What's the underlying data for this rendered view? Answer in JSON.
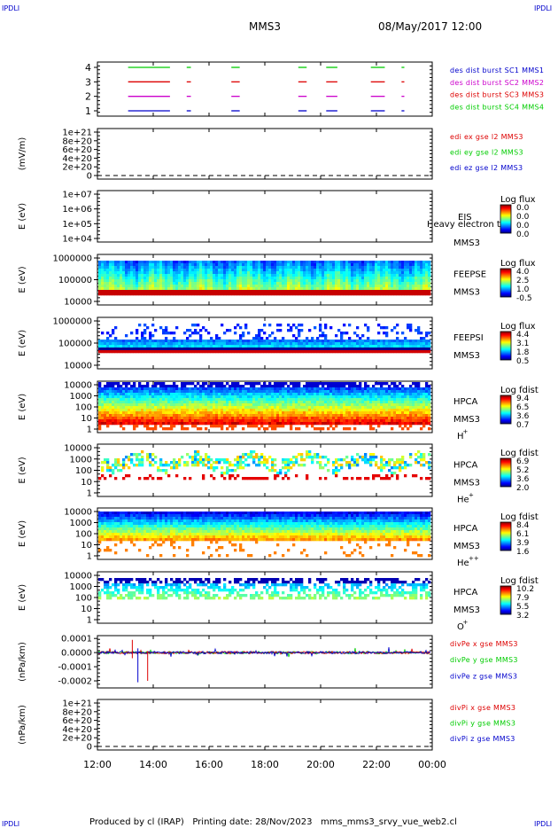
{
  "header": {
    "corner_tl": "IPDLI",
    "corner_tr": "IPDLI",
    "corner_bl": "IPDLI",
    "corner_br": "IPDLI",
    "spacecraft": "MMS3",
    "datetime": "08/May/2017 12:00"
  },
  "footer": {
    "text": "Produced by cl (IRAP)   Printing date: 28/Nov/2023   mms_mms3_srvy_vue_web2.cl"
  },
  "time_axis": {
    "ticks": [
      "12:00",
      "14:00",
      "16:00",
      "18:00",
      "20:00",
      "22:00",
      "00:00"
    ],
    "range_hours": [
      12,
      24
    ]
  },
  "colors": {
    "red": "#dd0000",
    "green": "#00cc00",
    "blue": "#0000cc",
    "magenta": "#cc00cc"
  },
  "chart_data": [
    {
      "id": "burst",
      "type": "timeline",
      "y_ticks": [
        "4",
        "3",
        "2",
        "1"
      ],
      "legend": [
        {
          "text": "des dist burst SC1 MMS1",
          "color": "#0000cc"
        },
        {
          "text": "des dist burst SC2 MMS2",
          "color": "#cc00cc"
        },
        {
          "text": "des dist burst SC3 MMS3",
          "color": "#dd0000"
        },
        {
          "text": "des dist burst SC4 MMS4",
          "color": "#00cc00"
        }
      ],
      "tracks": [
        {
          "level": 4,
          "color": "#00cc00"
        },
        {
          "level": 3,
          "color": "#dd0000"
        },
        {
          "level": 2,
          "color": "#cc00cc"
        },
        {
          "level": 1,
          "color": "#0000cc"
        }
      ],
      "intervals_hours": [
        [
          13.1,
          14.6
        ],
        [
          15.2,
          15.35
        ],
        [
          16.8,
          17.1
        ],
        [
          19.2,
          19.5
        ],
        [
          20.2,
          20.6
        ],
        [
          21.8,
          22.3
        ],
        [
          22.9,
          23.0
        ]
      ]
    },
    {
      "id": "edi",
      "type": "line",
      "ylabel": "(mV/m)",
      "y_ticks": [
        "1e+21",
        "8e+20",
        "6e+20",
        "4e+20",
        "2e+20",
        "0"
      ],
      "legend": [
        {
          "text": "edi ex gse l2 MMS3",
          "color": "#dd0000"
        },
        {
          "text": "edi ey gse l2 MMS3",
          "color": "#00cc00"
        },
        {
          "text": "edi ez gse l2 MMS3",
          "color": "#0000cc"
        }
      ]
    },
    {
      "id": "eis",
      "type": "heatmap",
      "ylabel": "E (eV)",
      "y_ticks": [
        "1e+07",
        "1e+06",
        "1e+05",
        "1e+04"
      ],
      "instrument": "EIS",
      "spacecraft": "MMS3",
      "note": "Heavy electron to",
      "colorbar_title": "Log flux",
      "colorbar_ticks": [
        "0.0",
        "0.0",
        "0.0",
        "0.0"
      ]
    },
    {
      "id": "feepse",
      "type": "heatmap",
      "ylabel": "E (eV)",
      "y_ticks": [
        "1000000",
        "100000",
        "10000"
      ],
      "instrument": "FEEPSE",
      "spacecraft": "MMS3",
      "colorbar_title": "Log flux",
      "colorbar_ticks": [
        "4.0",
        "2.5",
        "1.0",
        "-0.5"
      ]
    },
    {
      "id": "feepsi",
      "type": "heatmap",
      "ylabel": "E (eV)",
      "y_ticks": [
        "1000000",
        "100000",
        "10000"
      ],
      "instrument": "FEEPSI",
      "spacecraft": "MMS3",
      "colorbar_title": "Log flux",
      "colorbar_ticks": [
        "4.4",
        "3.1",
        "1.8",
        "0.5"
      ]
    },
    {
      "id": "hpca_h",
      "type": "heatmap",
      "ylabel": "E (eV)",
      "y_ticks": [
        "10000",
        "1000",
        "100",
        "10",
        "1"
      ],
      "instrument": "HPCA",
      "spacecraft": "MMS3",
      "species": "H",
      "species_sup": "+",
      "colorbar_title": "Log fdist",
      "colorbar_ticks": [
        "9.4",
        "6.5",
        "3.6",
        "0.7"
      ]
    },
    {
      "id": "hpca_he",
      "type": "heatmap",
      "ylabel": "E (eV)",
      "y_ticks": [
        "10000",
        "1000",
        "100",
        "10",
        "1"
      ],
      "instrument": "HPCA",
      "spacecraft": "MMS3",
      "species": "He",
      "species_sup": "+",
      "colorbar_title": "Log fdist",
      "colorbar_ticks": [
        "6.9",
        "5.2",
        "3.6",
        "2.0"
      ]
    },
    {
      "id": "hpca_hepp",
      "type": "heatmap",
      "ylabel": "E (eV)",
      "y_ticks": [
        "10000",
        "1000",
        "100",
        "10",
        "1"
      ],
      "instrument": "HPCA",
      "spacecraft": "MMS3",
      "species": "He",
      "species_sup": "++",
      "colorbar_title": "Log fdist",
      "colorbar_ticks": [
        "8.4",
        "6.1",
        "3.9",
        "1.6"
      ]
    },
    {
      "id": "hpca_o",
      "type": "heatmap",
      "ylabel": "E (eV)",
      "y_ticks": [
        "10000",
        "1000",
        "100",
        "10",
        "1"
      ],
      "instrument": "HPCA",
      "spacecraft": "MMS3",
      "species": "O",
      "species_sup": "+",
      "colorbar_title": "Log fdist",
      "colorbar_ticks": [
        "10.2",
        "7.9",
        "5.5",
        "3.2"
      ]
    },
    {
      "id": "divpe",
      "type": "line",
      "ylabel": "(nPa/km)",
      "y_ticks": [
        "0.0001",
        "0.0000",
        "-0.0001",
        "-0.0002"
      ],
      "ylim": [
        -0.00025,
        0.00012
      ],
      "legend": [
        {
          "text": "divPe x gse MMS3",
          "color": "#dd0000"
        },
        {
          "text": "divPe y gse MMS3",
          "color": "#00cc00"
        },
        {
          "text": "divPe z gse MMS3",
          "color": "#0000cc"
        }
      ]
    },
    {
      "id": "divpi",
      "type": "line",
      "ylabel": "(nPa/km)",
      "y_ticks": [
        "1e+21",
        "8e+20",
        "6e+20",
        "4e+20",
        "2e+20",
        "0"
      ],
      "legend": [
        {
          "text": "divPi x gse MMS3",
          "color": "#dd0000"
        },
        {
          "text": "divPi y gse MMS3",
          "color": "#00cc00"
        },
        {
          "text": "divPi z gse MMS3",
          "color": "#0000cc"
        }
      ]
    }
  ]
}
